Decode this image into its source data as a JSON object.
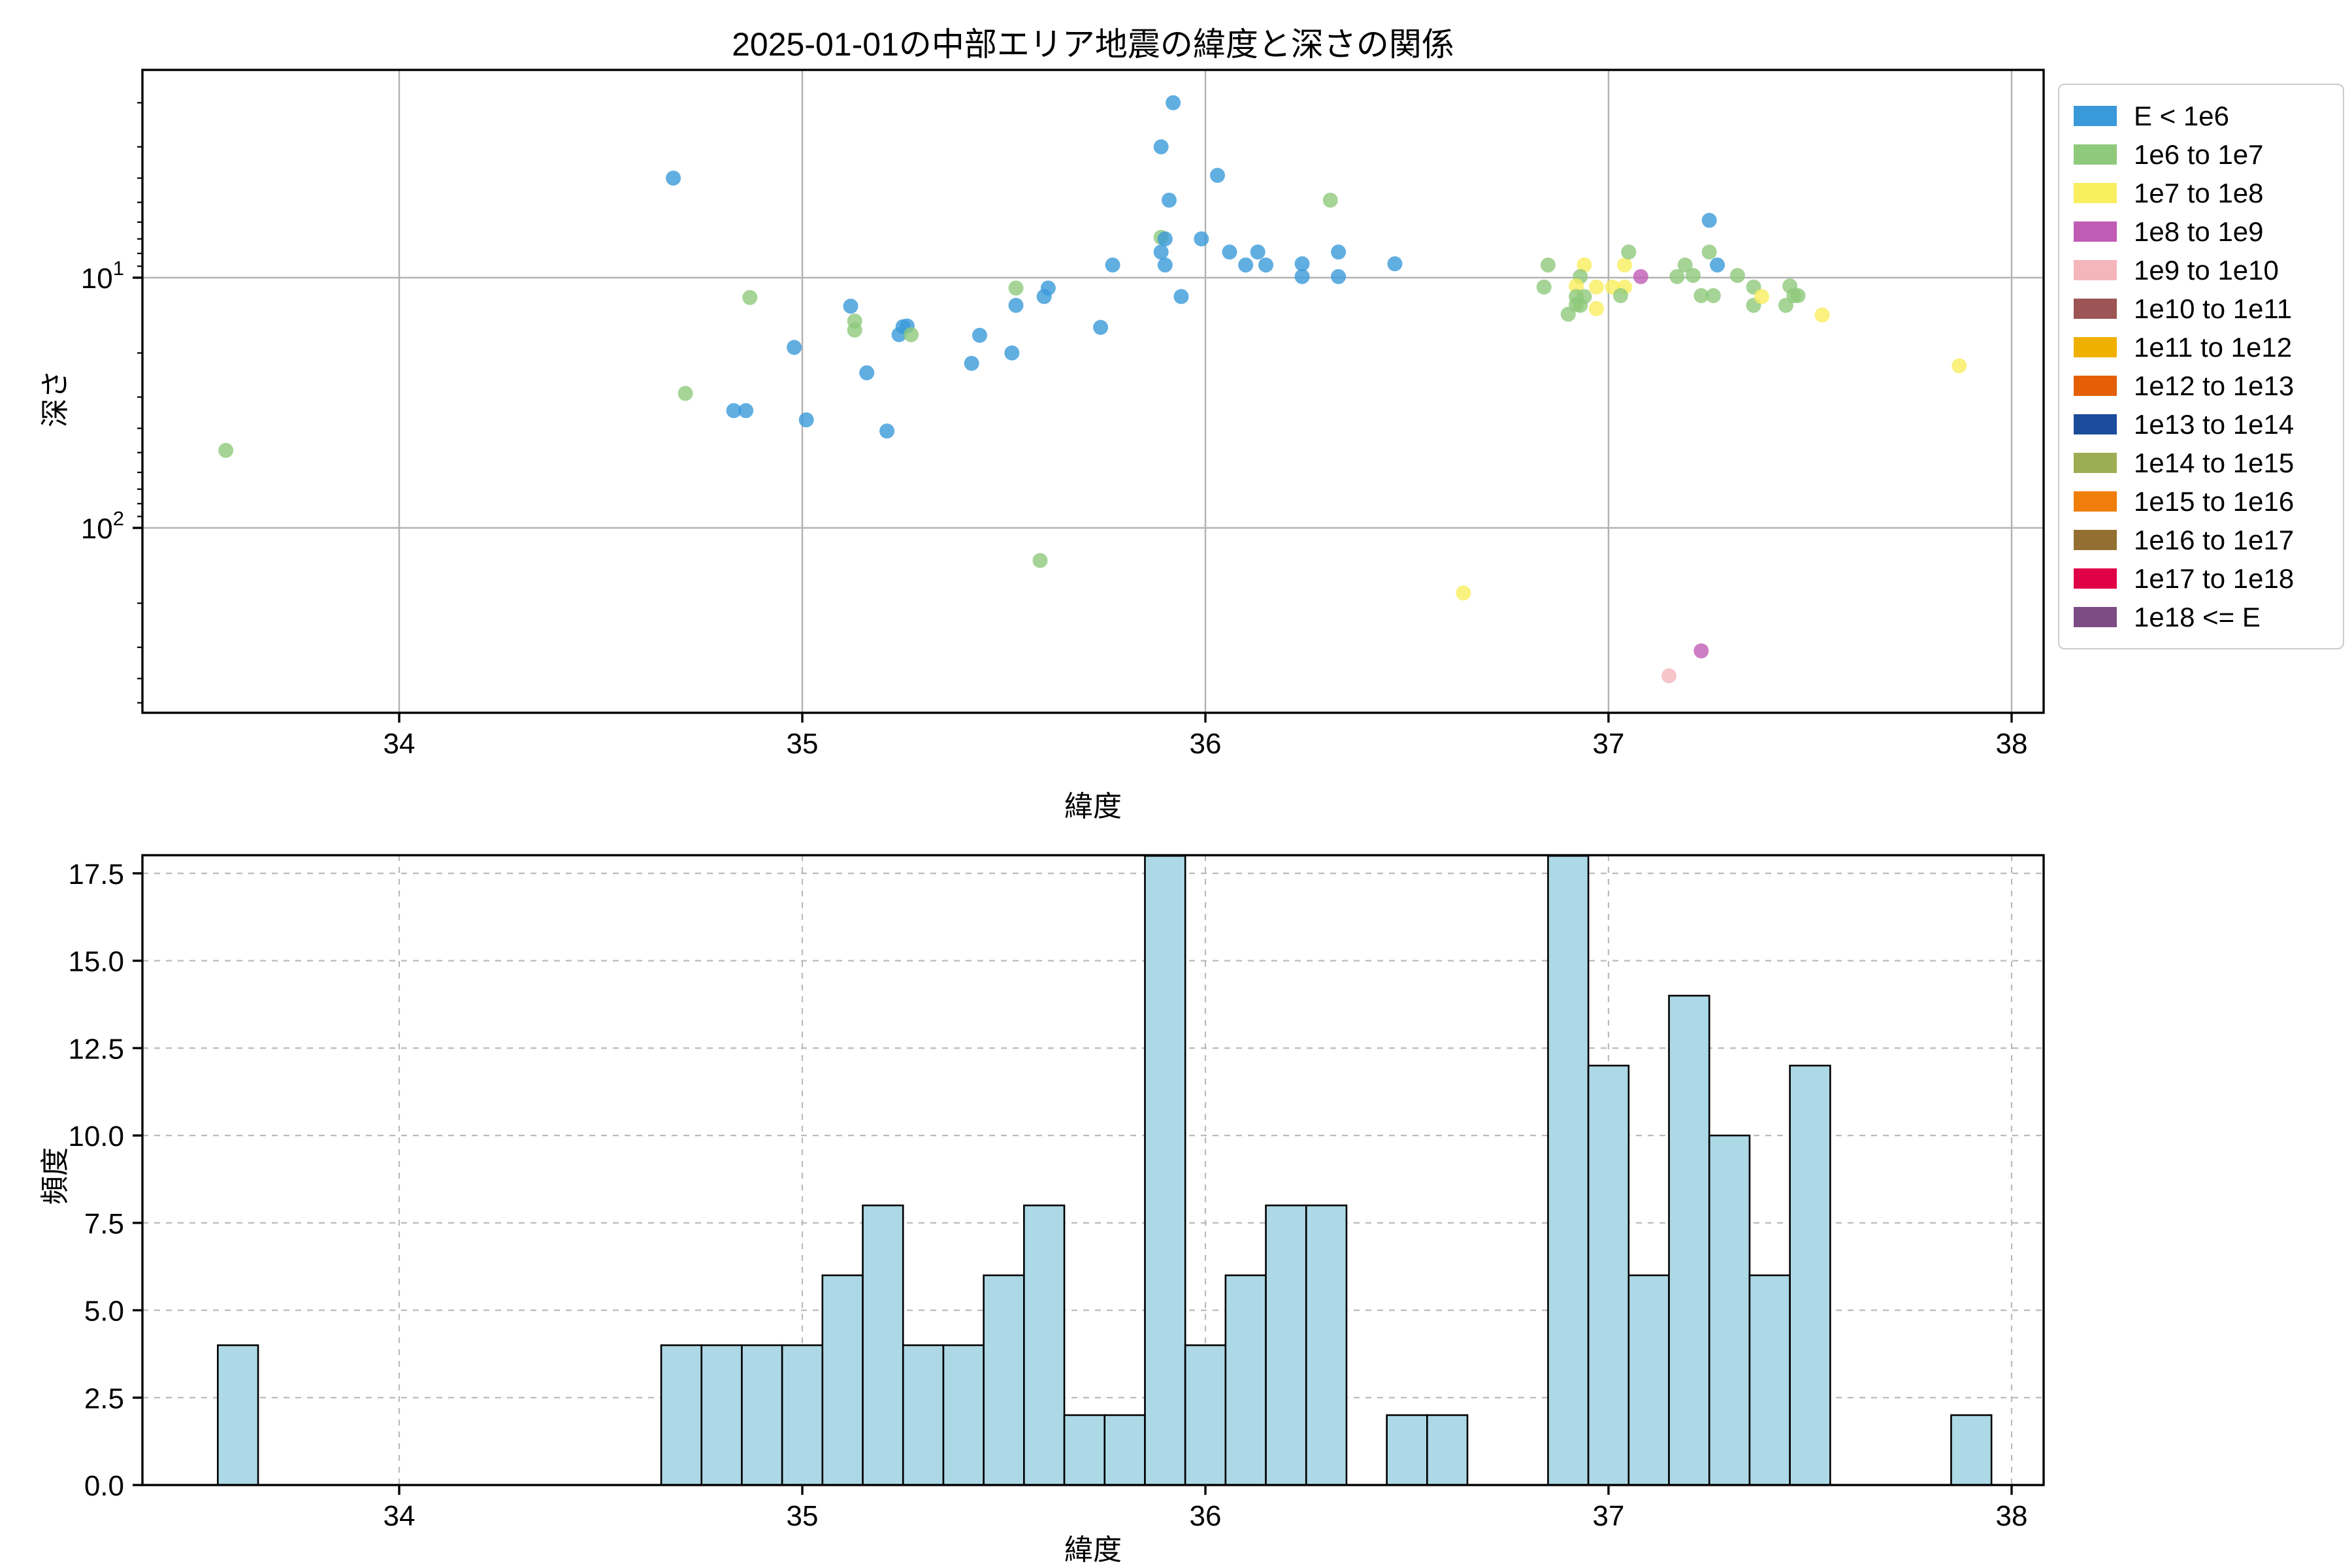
{
  "title": "2025-01-01の中部エリア地震の緯度と深さの関係",
  "chart_data": [
    {
      "type": "scatter",
      "title": "2025-01-01の中部エリア地震の緯度と深さの関係",
      "xlabel": "緯度",
      "ylabel": "深さ",
      "xlim": [
        33.36,
        38.08
      ],
      "ylim_depth_log_inverted": [
        1.5,
        545
      ],
      "xticks": [
        "34",
        "35",
        "36",
        "37",
        "38"
      ],
      "yticks": [
        {
          "value": 10,
          "label": "10",
          "exp": "1"
        },
        {
          "value": 100,
          "label": "10",
          "exp": "2"
        }
      ],
      "grid": "solid gray, major only",
      "legend_position": "outside upper right",
      "legend": {
        "items": [
          {
            "label": "E < 1e6",
            "color": "#3A9AD9"
          },
          {
            "label": "1e6 to 1e7",
            "color": "#8FC97C"
          },
          {
            "label": "1e7 to 1e8",
            "color": "#F9EE5E"
          },
          {
            "label": "1e8 to 1e9",
            "color": "#C15CB5"
          },
          {
            "label": "1e9 to 1e10",
            "color": "#F4B6BB"
          },
          {
            "label": "1e10 to 1e11",
            "color": "#9D5454"
          },
          {
            "label": "1e11 to 1e12",
            "color": "#F0B000"
          },
          {
            "label": "1e12 to 1e13",
            "color": "#E45F06"
          },
          {
            "label": "1e13 to 1e14",
            "color": "#1C4C9C"
          },
          {
            "label": "1e14 to 1e15",
            "color": "#9CAD53"
          },
          {
            "label": "1e15 to 1e16",
            "color": "#F07E0B"
          },
          {
            "label": "1e16 to 1e17",
            "color": "#937031"
          },
          {
            "label": "1e17 to 1e18",
            "color": "#E00246"
          },
          {
            "label": "1e18 <= E",
            "color": "#7C4D85"
          }
        ]
      },
      "points_format": [
        "latitude",
        "depth_km",
        "category_index"
      ],
      "points": [
        [
          33.57,
          49,
          1
        ],
        [
          34.68,
          4.0,
          0
        ],
        [
          34.71,
          29,
          1
        ],
        [
          34.83,
          34,
          0
        ],
        [
          34.86,
          34,
          0
        ],
        [
          34.87,
          12,
          1
        ],
        [
          34.98,
          19,
          0
        ],
        [
          35.01,
          37,
          0
        ],
        [
          35.12,
          13,
          0
        ],
        [
          35.13,
          14.9,
          1
        ],
        [
          35.13,
          16.2,
          1
        ],
        [
          35.16,
          24,
          0
        ],
        [
          35.21,
          41,
          0
        ],
        [
          35.25,
          15.7,
          0
        ],
        [
          35.26,
          15.6,
          0
        ],
        [
          35.24,
          16.9,
          0
        ],
        [
          35.27,
          16.9,
          1
        ],
        [
          35.42,
          22,
          0
        ],
        [
          35.44,
          17,
          0
        ],
        [
          35.52,
          20,
          0
        ],
        [
          35.53,
          12.9,
          0
        ],
        [
          35.53,
          11.0,
          1
        ],
        [
          35.6,
          11.9,
          0
        ],
        [
          35.61,
          11.0,
          0
        ],
        [
          35.74,
          15.8,
          0
        ],
        [
          35.59,
          135,
          1
        ],
        [
          35.92,
          2.0,
          0
        ],
        [
          35.89,
          3.0,
          0
        ],
        [
          36.03,
          3.9,
          0
        ],
        [
          35.91,
          4.9,
          0
        ],
        [
          36.31,
          4.9,
          1
        ],
        [
          35.89,
          6.9,
          1
        ],
        [
          35.9,
          7.0,
          0
        ],
        [
          35.99,
          7.0,
          0
        ],
        [
          35.89,
          7.9,
          0
        ],
        [
          36.06,
          7.9,
          0
        ],
        [
          36.13,
          7.9,
          0
        ],
        [
          35.9,
          8.9,
          0
        ],
        [
          35.77,
          8.9,
          0
        ],
        [
          36.1,
          8.9,
          0
        ],
        [
          36.15,
          8.9,
          0
        ],
        [
          36.24,
          8.8,
          0
        ],
        [
          36.24,
          9.9,
          0
        ],
        [
          36.33,
          7.9,
          0
        ],
        [
          36.33,
          9.9,
          0
        ],
        [
          36.47,
          8.8,
          0
        ],
        [
          35.94,
          11.9,
          0
        ],
        [
          36.64,
          182,
          2
        ],
        [
          36.85,
          8.9,
          1
        ],
        [
          36.84,
          10.9,
          1
        ],
        [
          36.94,
          8.9,
          2
        ],
        [
          36.93,
          9.9,
          1
        ],
        [
          36.92,
          10.8,
          2
        ],
        [
          36.97,
          10.9,
          2
        ],
        [
          36.92,
          11.9,
          1
        ],
        [
          36.94,
          11.9,
          1
        ],
        [
          36.92,
          12.8,
          1
        ],
        [
          36.93,
          12.9,
          1
        ],
        [
          36.9,
          14.0,
          1
        ],
        [
          36.97,
          13.3,
          2
        ],
        [
          37.01,
          10.9,
          2
        ],
        [
          37.04,
          10.9,
          2
        ],
        [
          37.04,
          8.9,
          2
        ],
        [
          37.05,
          7.9,
          1
        ],
        [
          37.03,
          11.8,
          1
        ],
        [
          37.08,
          9.9,
          3
        ],
        [
          37.17,
          9.9,
          1
        ],
        [
          37.19,
          8.9,
          1
        ],
        [
          37.21,
          9.8,
          1
        ],
        [
          37.25,
          5.9,
          0
        ],
        [
          37.25,
          7.9,
          1
        ],
        [
          37.27,
          8.9,
          0
        ],
        [
          37.23,
          11.8,
          1
        ],
        [
          37.26,
          11.8,
          1
        ],
        [
          37.32,
          9.8,
          1
        ],
        [
          37.36,
          10.9,
          1
        ],
        [
          37.36,
          12.9,
          1
        ],
        [
          37.38,
          11.9,
          2
        ],
        [
          37.45,
          10.8,
          1
        ],
        [
          37.46,
          11.8,
          1
        ],
        [
          37.47,
          11.8,
          1
        ],
        [
          37.44,
          12.9,
          1
        ],
        [
          37.53,
          14.1,
          2
        ],
        [
          37.87,
          22.5,
          2
        ],
        [
          37.23,
          310,
          3
        ],
        [
          37.15,
          390,
          4
        ]
      ]
    },
    {
      "type": "bar",
      "subtype": "histogram",
      "xlabel": "緯度",
      "ylabel": "頻度",
      "xlim": [
        33.36,
        38.08
      ],
      "ylim": [
        0,
        18.05
      ],
      "xticks": [
        "34",
        "35",
        "36",
        "37",
        "38"
      ],
      "yticks": [
        "0.0",
        "2.5",
        "5.0",
        "7.5",
        "10.0",
        "12.5",
        "15.0",
        "17.5"
      ],
      "grid": "dashed, both axes",
      "bar_color": "#ADD8E6",
      "bar_edge_color": "#000000",
      "bins": {
        "start": 33.55,
        "width": 0.1,
        "counts": [
          4,
          0,
          0,
          0,
          0,
          0,
          0,
          0,
          0,
          0,
          0,
          4,
          4,
          4,
          4,
          6,
          8,
          4,
          4,
          6,
          8,
          2,
          2,
          18,
          4,
          6,
          8,
          8,
          0,
          2,
          2,
          0,
          0,
          18,
          12,
          6,
          14,
          10,
          6,
          12,
          0,
          0,
          0,
          2
        ]
      }
    }
  ]
}
